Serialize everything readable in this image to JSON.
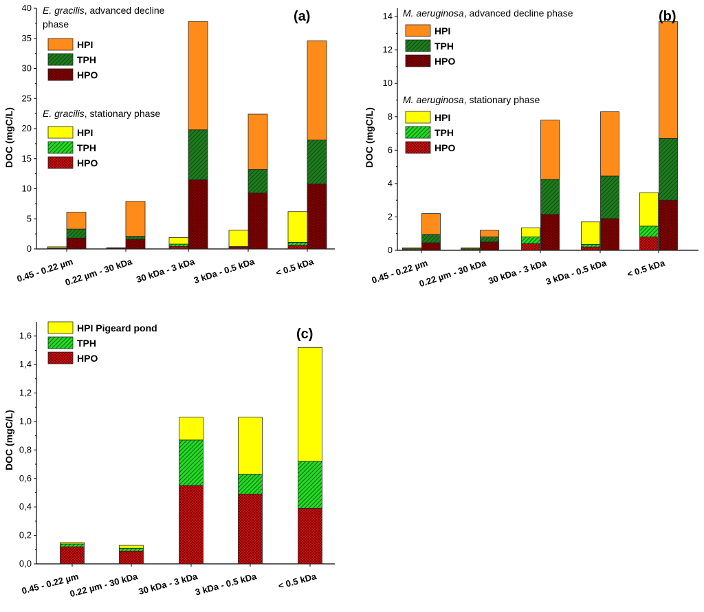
{
  "chart_data": [
    {
      "panel_label": "(a)",
      "type": "bar",
      "subtype": "stacked",
      "ylabel": "DOC (mgC/L)",
      "xlabel": "",
      "ylim": [
        0,
        40
      ],
      "yticks": [
        "0",
        "5",
        "10",
        "15",
        "20",
        "25",
        "30",
        "35",
        "40"
      ],
      "categories": [
        "0.45 - 0.22 µm",
        "0.22 µm - 30 kDa",
        "30 kDa - 3 kDa",
        "3 kDa - 0.5 kDa",
        "< 0.5 kDa"
      ],
      "groups": [
        {
          "title_species": "E. gracilis",
          "title_rest": ", advanced decline",
          "title_line2": "phase",
          "series": [
            {
              "name": "HPO",
              "color": "#8b0000",
              "pattern": "crosshatch",
              "values": [
                1.8,
                1.6,
                11.5,
                9.3,
                10.8
              ]
            },
            {
              "name": "TPH",
              "color": "#1e7b1e",
              "pattern": "diagonal",
              "values": [
                1.5,
                0.5,
                8.3,
                3.9,
                7.3
              ]
            },
            {
              "name": "HPI",
              "color": "#ff8c1a",
              "pattern": "solid",
              "values": [
                2.8,
                5.8,
                18.0,
                9.2,
                16.5
              ]
            }
          ]
        },
        {
          "title_species": "E. gracilis",
          "title_rest": ", stationary phase",
          "title_line2": "",
          "series": [
            {
              "name": "HPO",
              "color": "#e01010",
              "pattern": "crosshatch",
              "values": [
                0.1,
                0.1,
                0.4,
                0.3,
                0.6
              ]
            },
            {
              "name": "TPH",
              "color": "#22dd22",
              "pattern": "diagonal",
              "values": [
                0.05,
                0.05,
                0.4,
                0.1,
                0.5
              ]
            },
            {
              "name": "HPI",
              "color": "#ffff00",
              "pattern": "solid",
              "values": [
                0.2,
                0.05,
                1.1,
                2.7,
                5.1
              ]
            }
          ]
        }
      ]
    },
    {
      "panel_label": "(b)",
      "type": "bar",
      "subtype": "stacked",
      "ylabel": "DOC (mgC/L)",
      "xlabel": "",
      "ylim": [
        0,
        14.5
      ],
      "yticks": [
        "0",
        "2",
        "4",
        "6",
        "8",
        "10",
        "12",
        "14"
      ],
      "categories": [
        "0.45 - 0.22 µm",
        "0.22 µm - 30 kDa",
        "30 kDa - 3 kDa",
        "3 kDa - 0.5 kDa",
        "< 0.5 kDa"
      ],
      "groups": [
        {
          "title_species": "M. aeruginosa",
          "title_rest": ", advanced decline phase",
          "title_line2": "",
          "series": [
            {
              "name": "HPO",
              "color": "#8b0000",
              "pattern": "crosshatch",
              "values": [
                0.45,
                0.5,
                2.15,
                1.9,
                3.0
              ]
            },
            {
              "name": "TPH",
              "color": "#1e7b1e",
              "pattern": "diagonal",
              "values": [
                0.5,
                0.3,
                2.1,
                2.55,
                3.7
              ]
            },
            {
              "name": "HPI",
              "color": "#ff8c1a",
              "pattern": "solid",
              "values": [
                1.25,
                0.4,
                3.55,
                3.85,
                7.0
              ]
            }
          ]
        },
        {
          "title_species": "M. aeruginosa",
          "title_rest": ", stationary phase",
          "title_line2": "",
          "series": [
            {
              "name": "HPO",
              "color": "#e01010",
              "pattern": "crosshatch",
              "values": [
                0.05,
                0.05,
                0.4,
                0.2,
                0.8
              ]
            },
            {
              "name": "TPH",
              "color": "#22dd22",
              "pattern": "diagonal",
              "values": [
                0.05,
                0.05,
                0.4,
                0.15,
                0.65
              ]
            },
            {
              "name": "HPI",
              "color": "#ffff00",
              "pattern": "solid",
              "values": [
                0.05,
                0.05,
                0.55,
                1.35,
                2.0
              ]
            }
          ]
        }
      ]
    },
    {
      "panel_label": "(c)",
      "type": "bar",
      "subtype": "stacked",
      "ylabel": "DOC (mgC/L)",
      "xlabel": "",
      "ylim": [
        0,
        1.7
      ],
      "yticks": [
        "0,0",
        "0,2",
        "0,4",
        "0,6",
        "0,8",
        "1,0",
        "1,2",
        "1,4",
        "1,6"
      ],
      "categories": [
        "0.45 - 0.22 µm",
        "0.22 µm - 30 kDa",
        "30 kDa - 3 kDa",
        "3 kDa - 0.5 kDa",
        "< 0.5 kDa"
      ],
      "groups": [
        {
          "title_species": "",
          "title_rest": "",
          "title_line2": "",
          "series": [
            {
              "name": "HPO",
              "color": "#e01010",
              "pattern": "crosshatch",
              "values": [
                0.12,
                0.09,
                0.55,
                0.49,
                0.39
              ]
            },
            {
              "name": "TPH",
              "color": "#22dd22",
              "pattern": "diagonal",
              "values": [
                0.02,
                0.02,
                0.32,
                0.14,
                0.33
              ]
            },
            {
              "name": "HPI Pigeard pond",
              "color": "#ffff00",
              "pattern": "solid",
              "values": [
                0.01,
                0.02,
                0.16,
                0.4,
                0.8
              ]
            }
          ]
        }
      ]
    }
  ]
}
